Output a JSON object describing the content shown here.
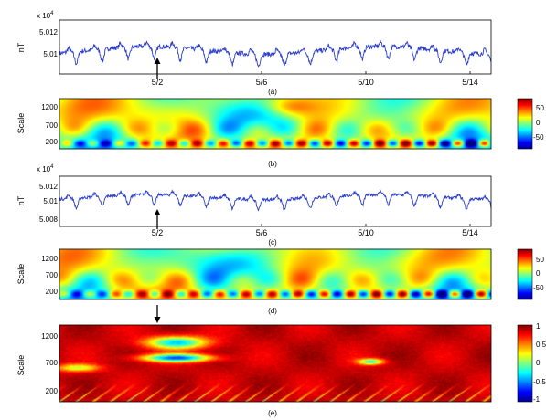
{
  "chart_data": [
    {
      "type": "line",
      "panel_label": "(a)",
      "ylabel": "nT",
      "exponent_label": "x 10",
      "exponent_power": "4",
      "yticks": [
        5.01,
        5.012
      ],
      "yticklabels": [
        "5.01",
        "5.012"
      ],
      "ylim": [
        5.0092,
        5.0133
      ],
      "xticklabels": [
        "5/2",
        "5/6",
        "5/10",
        "5/14"
      ],
      "x_tick_days": [
        2,
        6,
        10,
        14
      ],
      "xlim_days": [
        -1.2,
        15.4
      ],
      "series": [
        {
          "color": "#2a3dcc",
          "daily_cycle_mean": 5.011,
          "daily_cycle_amplitude": 0.0009
        }
      ],
      "annotations": [
        {
          "type": "arrow-up",
          "x_day": 2
        }
      ]
    },
    {
      "type": "heatmap",
      "panel_label": "(b)",
      "ylabel": "Scale",
      "yticklabels": [
        "1200",
        "700",
        "200"
      ],
      "yticks": [
        1200,
        700,
        200
      ],
      "ylim": [
        50,
        1400
      ],
      "colorbar": {
        "ticks": [
          "50",
          "0",
          "-50"
        ],
        "range": [
          -80,
          80
        ]
      }
    },
    {
      "type": "line",
      "panel_label": "(c)",
      "ylabel": "nT",
      "exponent_label": "x 10",
      "exponent_power": "4",
      "yticks": [
        5.008,
        5.01,
        5.012
      ],
      "yticklabels": [
        "5.008",
        "5.01",
        "5.012"
      ],
      "ylim": [
        5.0073,
        5.0133
      ],
      "xticklabels": [
        "5/2",
        "5/6",
        "5/10",
        "5/14"
      ],
      "x_tick_days": [
        2,
        6,
        10,
        14
      ],
      "xlim_days": [
        -1.2,
        15.4
      ],
      "series": [
        {
          "color": "#2a3dcc",
          "daily_cycle_mean": 5.0108,
          "daily_cycle_amplitude": 0.0012
        }
      ],
      "annotations": [
        {
          "type": "arrow-up",
          "x_day": 2
        }
      ]
    },
    {
      "type": "heatmap",
      "panel_label": "(d)",
      "ylabel": "Scale",
      "yticklabels": [
        "1200",
        "700",
        "200"
      ],
      "yticks": [
        1200,
        700,
        200
      ],
      "ylim": [
        50,
        1400
      ],
      "colorbar": {
        "ticks": [
          "50",
          "0",
          "-50"
        ],
        "range": [
          -80,
          80
        ]
      }
    },
    {
      "type": "heatmap",
      "panel_label": "(e)",
      "ylabel": "Scale",
      "yticklabels": [
        "1200",
        "700",
        "200"
      ],
      "yticks": [
        1200,
        700,
        200
      ],
      "ylim": [
        50,
        1400
      ],
      "colorbar": {
        "ticks": [
          "1",
          "0.5",
          "0",
          "-0.5",
          "-1"
        ],
        "range": [
          -1,
          1
        ]
      },
      "annotations": [
        {
          "type": "arrow-down",
          "x_day": 2
        }
      ]
    }
  ]
}
